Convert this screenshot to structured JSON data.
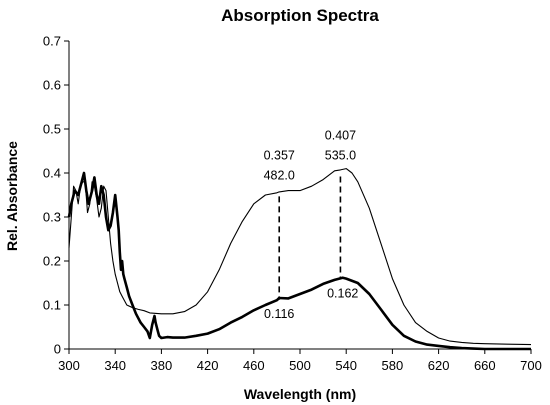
{
  "chart_data": {
    "type": "line",
    "title": "Absorption Spectra",
    "xlabel": "Wavelength (nm)",
    "ylabel": "Rel. Absorbance",
    "xlim": [
      300,
      700
    ],
    "ylim": [
      0,
      0.7
    ],
    "x_ticks": [
      300,
      340,
      380,
      420,
      460,
      500,
      540,
      580,
      620,
      660,
      700
    ],
    "x_tick_labels": [
      "300",
      "340",
      "380",
      "420",
      "460",
      "500",
      "540",
      "580",
      "620",
      "660",
      "700"
    ],
    "y_ticks": [
      0,
      0.1,
      0.2,
      0.3,
      0.4,
      0.5,
      0.6,
      0.7
    ],
    "y_tick_labels": [
      "0",
      "0.1",
      "0.2",
      "0.3",
      "0.4",
      "0.5",
      "0.6",
      "0.7"
    ],
    "grid": false,
    "legend": "none",
    "series": [
      {
        "color": "#000000",
        "style": "thin",
        "points": [
          [
            300,
            0.23
          ],
          [
            302,
            0.3
          ],
          [
            304,
            0.37
          ],
          [
            306,
            0.36
          ],
          [
            308,
            0.33
          ],
          [
            310,
            0.37
          ],
          [
            312,
            0.38
          ],
          [
            314,
            0.38
          ],
          [
            316,
            0.31
          ],
          [
            318,
            0.33
          ],
          [
            320,
            0.38
          ],
          [
            322,
            0.37
          ],
          [
            324,
            0.34
          ],
          [
            326,
            0.3
          ],
          [
            328,
            0.32
          ],
          [
            330,
            0.37
          ],
          [
            332,
            0.36
          ],
          [
            334,
            0.3
          ],
          [
            336,
            0.24
          ],
          [
            338,
            0.2
          ],
          [
            340,
            0.17
          ],
          [
            342,
            0.15
          ],
          [
            344,
            0.13
          ],
          [
            346,
            0.12
          ],
          [
            350,
            0.1
          ],
          [
            355,
            0.094
          ],
          [
            360,
            0.09
          ],
          [
            365,
            0.087
          ],
          [
            370,
            0.082
          ],
          [
            380,
            0.08
          ],
          [
            390,
            0.08
          ],
          [
            400,
            0.085
          ],
          [
            410,
            0.1
          ],
          [
            420,
            0.13
          ],
          [
            430,
            0.18
          ],
          [
            440,
            0.24
          ],
          [
            450,
            0.29
          ],
          [
            460,
            0.33
          ],
          [
            470,
            0.35
          ],
          [
            480,
            0.355
          ],
          [
            482,
            0.357
          ],
          [
            490,
            0.36
          ],
          [
            500,
            0.36
          ],
          [
            510,
            0.37
          ],
          [
            520,
            0.385
          ],
          [
            530,
            0.405
          ],
          [
            535,
            0.407
          ],
          [
            540,
            0.41
          ],
          [
            545,
            0.4
          ],
          [
            550,
            0.38
          ],
          [
            560,
            0.32
          ],
          [
            570,
            0.24
          ],
          [
            580,
            0.16
          ],
          [
            590,
            0.1
          ],
          [
            600,
            0.06
          ],
          [
            610,
            0.04
          ],
          [
            620,
            0.025
          ],
          [
            630,
            0.018
          ],
          [
            640,
            0.015
          ],
          [
            650,
            0.013
          ],
          [
            660,
            0.012
          ],
          [
            680,
            0.011
          ],
          [
            700,
            0.01
          ]
        ]
      },
      {
        "color": "#000000",
        "style": "thick",
        "points": [
          [
            300,
            0.3
          ],
          [
            302,
            0.33
          ],
          [
            305,
            0.36
          ],
          [
            308,
            0.35
          ],
          [
            311,
            0.38
          ],
          [
            313,
            0.4
          ],
          [
            315,
            0.36
          ],
          [
            317,
            0.33
          ],
          [
            320,
            0.36
          ],
          [
            322,
            0.39
          ],
          [
            324,
            0.35
          ],
          [
            326,
            0.33
          ],
          [
            328,
            0.37
          ],
          [
            330,
            0.35
          ],
          [
            332,
            0.3
          ],
          [
            334,
            0.27
          ],
          [
            336,
            0.28
          ],
          [
            338,
            0.31
          ],
          [
            340,
            0.35
          ],
          [
            342,
            0.3
          ],
          [
            343,
            0.27
          ],
          [
            344,
            0.22
          ],
          [
            345,
            0.18
          ],
          [
            346,
            0.2
          ],
          [
            347,
            0.17
          ],
          [
            348,
            0.16
          ],
          [
            350,
            0.14
          ],
          [
            352,
            0.12
          ],
          [
            355,
            0.1
          ],
          [
            358,
            0.08
          ],
          [
            360,
            0.07
          ],
          [
            362,
            0.06
          ],
          [
            365,
            0.05
          ],
          [
            368,
            0.04
          ],
          [
            370,
            0.025
          ],
          [
            372,
            0.055
          ],
          [
            374,
            0.075
          ],
          [
            375,
            0.06
          ],
          [
            377,
            0.04
          ],
          [
            378,
            0.03
          ],
          [
            380,
            0.025
          ],
          [
            385,
            0.027
          ],
          [
            390,
            0.026
          ],
          [
            400,
            0.026
          ],
          [
            410,
            0.03
          ],
          [
            420,
            0.035
          ],
          [
            430,
            0.045
          ],
          [
            440,
            0.06
          ],
          [
            450,
            0.073
          ],
          [
            460,
            0.088
          ],
          [
            470,
            0.1
          ],
          [
            480,
            0.111
          ],
          [
            482,
            0.116
          ],
          [
            490,
            0.115
          ],
          [
            500,
            0.125
          ],
          [
            510,
            0.135
          ],
          [
            520,
            0.148
          ],
          [
            530,
            0.157
          ],
          [
            537,
            0.162
          ],
          [
            540,
            0.16
          ],
          [
            550,
            0.15
          ],
          [
            560,
            0.125
          ],
          [
            570,
            0.09
          ],
          [
            580,
            0.055
          ],
          [
            590,
            0.03
          ],
          [
            600,
            0.017
          ],
          [
            610,
            0.01
          ],
          [
            620,
            0.007
          ],
          [
            630,
            0.004
          ],
          [
            640,
            0.002
          ],
          [
            650,
            0.001
          ],
          [
            660,
            0
          ],
          [
            700,
            0
          ]
        ]
      }
    ],
    "annotations": [
      {
        "x": 482.0,
        "y_top": 0.347,
        "y_bottom": 0.112,
        "label_lines": [
          "0.357",
          "482.0"
        ],
        "label_pos": "above"
      },
      {
        "x": 535.0,
        "y_top": 0.392,
        "y_bottom": 0.162,
        "label_lines": [
          "0.407",
          "535.0"
        ],
        "label_pos": "above"
      }
    ],
    "point_labels": [
      {
        "text": "0.116",
        "x": 482,
        "y": 0.116
      },
      {
        "text": "0.162",
        "x": 537,
        "y": 0.162
      }
    ]
  }
}
